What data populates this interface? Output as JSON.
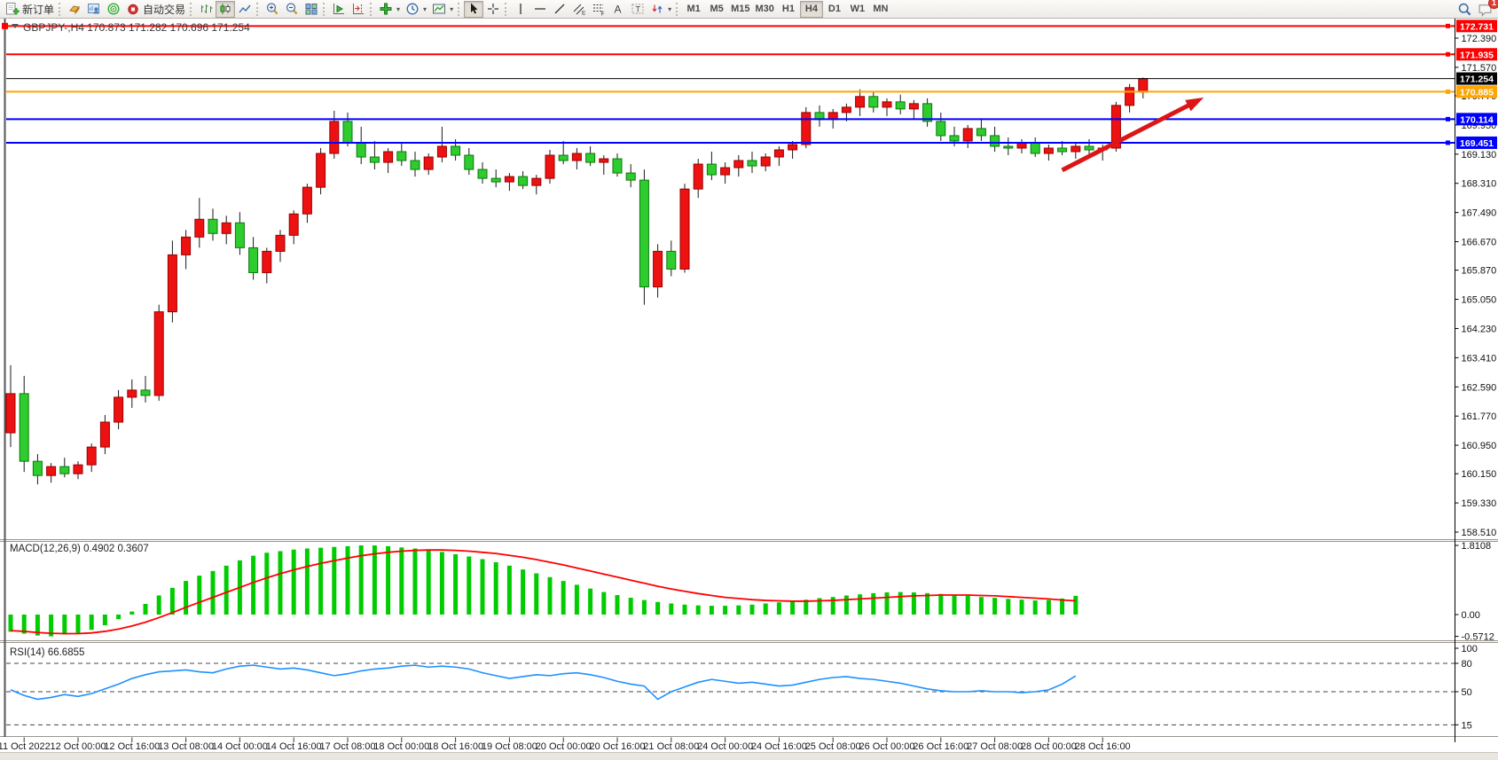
{
  "toolbar": {
    "new_order_label": "新订单",
    "autotrade_label": "自动交易",
    "timeframes": [
      "M1",
      "M5",
      "M15",
      "M30",
      "H1",
      "H4",
      "D1",
      "W1",
      "MN"
    ],
    "active_timeframe": "H4",
    "notification_count": "1"
  },
  "chart": {
    "title": "GBPJPY-,H4  170.873 171.282 170.696 171.254",
    "symbol": "GBPJPY-",
    "period": "H4"
  },
  "indicators": {
    "macd_label": "MACD(12,26,9) 0.4902 0.3607",
    "rsi_label": "RSI(14) 66.6855"
  },
  "chart_data": {
    "type": "candlestick",
    "symbol": "GBPJPY-",
    "timeframe": "H4",
    "title": "GBPJPY-,H4  170.873 171.282 170.696 171.254",
    "last_ohlc": {
      "open": 170.873,
      "high": 171.282,
      "low": 170.696,
      "close": 171.254
    },
    "up_color": "#ee1111",
    "down_color": "#2ecc2e",
    "price_axis_ticks": [
      172.39,
      171.57,
      170.77,
      169.95,
      169.13,
      168.31,
      167.49,
      166.67,
      165.87,
      165.05,
      164.23,
      163.41,
      162.59,
      161.77,
      160.95,
      160.15,
      159.33,
      158.51
    ],
    "time_labels": [
      "11 Oct 2022",
      "12 Oct 00:00",
      "12 Oct 16:00",
      "13 Oct 08:00",
      "14 Oct 00:00",
      "14 Oct 16:00",
      "17 Oct 08:00",
      "18 Oct 00:00",
      "18 Oct 16:00",
      "19 Oct 08:00",
      "20 Oct 00:00",
      "20 Oct 16:00",
      "21 Oct 08:00",
      "24 Oct 00:00",
      "24 Oct 16:00",
      "25 Oct 08:00",
      "26 Oct 00:00",
      "26 Oct 16:00",
      "27 Oct 08:00",
      "28 Oct 00:00",
      "28 Oct 16:00"
    ],
    "hlines": [
      {
        "price": 172.731,
        "label": "172.731",
        "color": "#fe0000",
        "badge_bg": "#fe0000",
        "badge_fg": "#ffffff",
        "width": 2,
        "left_handle": true
      },
      {
        "price": 171.935,
        "label": "171.935",
        "color": "#fe0000",
        "badge_bg": "#fe0000",
        "badge_fg": "#ffffff",
        "width": 2,
        "left_handle": false
      },
      {
        "price": 171.254,
        "label": "171.254",
        "color": "#000000",
        "badge_bg": "#000000",
        "badge_fg": "#ffffff",
        "width": 1,
        "left_handle": false,
        "is_current_price": true
      },
      {
        "price": 170.885,
        "label": "170.885",
        "color": "#ffa500",
        "badge_bg": "#ffa500",
        "badge_fg": "#ffffff",
        "width": 2,
        "left_handle": false
      },
      {
        "price": 170.114,
        "label": "170.114",
        "color": "#0000fe",
        "badge_bg": "#0000fe",
        "badge_fg": "#ffffff",
        "width": 2,
        "left_handle": false
      },
      {
        "price": 169.451,
        "label": "169.451",
        "color": "#0000fe",
        "badge_bg": "#0000fe",
        "badge_fg": "#ffffff",
        "width": 2,
        "left_handle": false
      }
    ],
    "candles": [
      [
        161.3,
        163.2,
        160.9,
        162.4
      ],
      [
        162.4,
        162.9,
        160.2,
        160.5
      ],
      [
        160.5,
        160.7,
        159.85,
        160.1
      ],
      [
        160.1,
        160.45,
        159.9,
        160.35
      ],
      [
        160.35,
        160.6,
        160.05,
        160.15
      ],
      [
        160.15,
        160.5,
        160.0,
        160.4
      ],
      [
        160.4,
        161.0,
        160.2,
        160.9
      ],
      [
        160.9,
        161.8,
        160.7,
        161.6
      ],
      [
        161.6,
        162.5,
        161.4,
        162.3
      ],
      [
        162.3,
        162.8,
        162.0,
        162.5
      ],
      [
        162.5,
        162.9,
        162.15,
        162.35
      ],
      [
        162.35,
        164.9,
        162.2,
        164.7
      ],
      [
        164.7,
        166.7,
        164.4,
        166.3
      ],
      [
        166.3,
        167.0,
        165.9,
        166.8
      ],
      [
        166.8,
        167.9,
        166.5,
        167.3
      ],
      [
        167.3,
        167.6,
        166.7,
        166.9
      ],
      [
        166.9,
        167.4,
        166.6,
        167.2
      ],
      [
        167.2,
        167.5,
        166.3,
        166.5
      ],
      [
        166.5,
        166.8,
        165.6,
        165.8
      ],
      [
        165.8,
        166.5,
        165.5,
        166.4
      ],
      [
        166.4,
        167.0,
        166.1,
        166.85
      ],
      [
        166.85,
        167.55,
        166.6,
        167.45
      ],
      [
        167.45,
        168.3,
        167.2,
        168.2
      ],
      [
        168.2,
        169.3,
        168.0,
        169.15
      ],
      [
        169.15,
        170.35,
        169.0,
        170.05
      ],
      [
        170.05,
        170.3,
        169.35,
        169.45
      ],
      [
        169.45,
        169.9,
        168.85,
        169.05
      ],
      [
        169.05,
        169.5,
        168.7,
        168.9
      ],
      [
        168.9,
        169.3,
        168.6,
        169.2
      ],
      [
        169.2,
        169.45,
        168.8,
        168.95
      ],
      [
        168.95,
        169.2,
        168.5,
        168.7
      ],
      [
        168.7,
        169.15,
        168.55,
        169.05
      ],
      [
        169.05,
        169.9,
        168.9,
        169.35
      ],
      [
        169.35,
        169.55,
        168.95,
        169.1
      ],
      [
        169.1,
        169.3,
        168.55,
        168.7
      ],
      [
        168.7,
        168.9,
        168.3,
        168.45
      ],
      [
        168.45,
        168.7,
        168.2,
        168.35
      ],
      [
        168.35,
        168.6,
        168.1,
        168.5
      ],
      [
        168.5,
        168.65,
        168.15,
        168.25
      ],
      [
        168.25,
        168.55,
        168.0,
        168.45
      ],
      [
        168.45,
        169.25,
        168.3,
        169.1
      ],
      [
        169.1,
        169.5,
        168.85,
        168.95
      ],
      [
        168.95,
        169.3,
        168.7,
        169.15
      ],
      [
        169.15,
        169.35,
        168.8,
        168.9
      ],
      [
        168.9,
        169.1,
        168.55,
        169.0
      ],
      [
        169.0,
        169.15,
        168.5,
        168.6
      ],
      [
        168.6,
        168.85,
        168.2,
        168.4
      ],
      [
        168.4,
        168.7,
        164.9,
        165.4
      ],
      [
        165.4,
        166.6,
        165.1,
        166.4
      ],
      [
        166.4,
        166.7,
        165.7,
        165.9
      ],
      [
        165.9,
        168.3,
        165.8,
        168.15
      ],
      [
        168.15,
        169.0,
        167.9,
        168.85
      ],
      [
        168.85,
        169.2,
        168.4,
        168.55
      ],
      [
        168.55,
        168.9,
        168.3,
        168.75
      ],
      [
        168.75,
        169.1,
        168.5,
        168.95
      ],
      [
        168.95,
        169.2,
        168.6,
        168.8
      ],
      [
        168.8,
        169.15,
        168.65,
        169.05
      ],
      [
        169.05,
        169.35,
        168.8,
        169.25
      ],
      [
        169.25,
        169.5,
        169.0,
        169.4
      ],
      [
        169.4,
        170.45,
        169.3,
        170.3
      ],
      [
        170.3,
        170.5,
        169.9,
        170.1
      ],
      [
        170.1,
        170.4,
        169.85,
        170.3
      ],
      [
        170.3,
        170.55,
        170.05,
        170.45
      ],
      [
        170.45,
        170.95,
        170.2,
        170.75
      ],
      [
        170.75,
        170.9,
        170.3,
        170.45
      ],
      [
        170.45,
        170.7,
        170.2,
        170.6
      ],
      [
        170.6,
        170.8,
        170.25,
        170.4
      ],
      [
        170.4,
        170.65,
        170.1,
        170.55
      ],
      [
        170.55,
        170.7,
        169.9,
        170.05
      ],
      [
        170.05,
        170.3,
        169.5,
        169.65
      ],
      [
        169.65,
        169.9,
        169.35,
        169.5
      ],
      [
        169.5,
        169.95,
        169.3,
        169.85
      ],
      [
        169.85,
        170.1,
        169.5,
        169.65
      ],
      [
        169.65,
        169.9,
        169.2,
        169.35
      ],
      [
        169.35,
        169.6,
        169.1,
        169.3
      ],
      [
        169.3,
        169.55,
        169.15,
        169.45
      ],
      [
        169.45,
        169.6,
        169.05,
        169.15
      ],
      [
        169.15,
        169.4,
        168.95,
        169.3
      ],
      [
        169.3,
        169.5,
        169.1,
        169.2
      ],
      [
        169.2,
        169.45,
        169.0,
        169.35
      ],
      [
        169.35,
        169.55,
        169.1,
        169.25
      ],
      [
        169.25,
        169.4,
        168.95,
        169.3
      ],
      [
        169.3,
        170.6,
        169.2,
        170.5
      ],
      [
        170.5,
        171.1,
        170.3,
        171.0
      ],
      [
        170.873,
        171.282,
        170.696,
        171.254
      ]
    ],
    "macd": {
      "label": "MACD(12,26,9) 0.4902 0.3607",
      "params": "12,26,9",
      "main_value": 0.4902,
      "signal_value": 0.3607,
      "axis_ticks": [
        "1.8108",
        "0.00",
        "-0.5712"
      ],
      "axis_tick_values": [
        1.8108,
        0,
        -0.5712
      ],
      "histogram_color": "#00cc00",
      "signal_color": "#fe0000",
      "histogram": [
        -0.45,
        -0.5,
        -0.55,
        -0.5712,
        -0.52,
        -0.48,
        -0.4,
        -0.28,
        -0.12,
        0.08,
        0.28,
        0.5,
        0.7,
        0.88,
        1.02,
        1.14,
        1.28,
        1.42,
        1.54,
        1.62,
        1.66,
        1.7,
        1.73,
        1.75,
        1.77,
        1.79,
        1.81,
        1.8108,
        1.79,
        1.76,
        1.73,
        1.69,
        1.64,
        1.58,
        1.52,
        1.45,
        1.37,
        1.28,
        1.18,
        1.08,
        0.98,
        0.88,
        0.78,
        0.68,
        0.59,
        0.51,
        0.44,
        0.38,
        0.33,
        0.29,
        0.26,
        0.24,
        0.23,
        0.23,
        0.24,
        0.26,
        0.29,
        0.32,
        0.35,
        0.39,
        0.43,
        0.46,
        0.5,
        0.53,
        0.56,
        0.58,
        0.59,
        0.58,
        0.56,
        0.54,
        0.51,
        0.49,
        0.46,
        0.44,
        0.41,
        0.39,
        0.37,
        0.38,
        0.42,
        0.49
      ],
      "signal": [
        -0.42,
        -0.44,
        -0.47,
        -0.49,
        -0.5,
        -0.5,
        -0.48,
        -0.44,
        -0.38,
        -0.3,
        -0.2,
        -0.08,
        0.05,
        0.19,
        0.32,
        0.45,
        0.58,
        0.71,
        0.84,
        0.96,
        1.07,
        1.17,
        1.26,
        1.34,
        1.41,
        1.48,
        1.54,
        1.59,
        1.63,
        1.66,
        1.68,
        1.69,
        1.69,
        1.68,
        1.66,
        1.63,
        1.6,
        1.55,
        1.5,
        1.44,
        1.37,
        1.3,
        1.22,
        1.14,
        1.06,
        0.98,
        0.9,
        0.82,
        0.74,
        0.67,
        0.61,
        0.55,
        0.5,
        0.45,
        0.42,
        0.39,
        0.37,
        0.36,
        0.35,
        0.35,
        0.36,
        0.37,
        0.39,
        0.41,
        0.43,
        0.45,
        0.47,
        0.49,
        0.5,
        0.51,
        0.51,
        0.51,
        0.5,
        0.49,
        0.47,
        0.45,
        0.43,
        0.41,
        0.38,
        0.36
      ]
    },
    "rsi": {
      "label": "RSI(14) 66.6855",
      "period": 14,
      "value": 66.6855,
      "axis_ticks": [
        "100",
        "80",
        "50",
        "15"
      ],
      "axis_tick_values": [
        100,
        80,
        50,
        15
      ],
      "level_lines": [
        80,
        50,
        15
      ],
      "line_color": "#1E90FF",
      "values": [
        52,
        46,
        42,
        44,
        47,
        45,
        48,
        53,
        58,
        64,
        68,
        71,
        72,
        73,
        71,
        70,
        74,
        77,
        78,
        76,
        74,
        75,
        73,
        70,
        67,
        69,
        72,
        74,
        75,
        77,
        78,
        76,
        77,
        76,
        74,
        70,
        67,
        64,
        66,
        68,
        67,
        69,
        70,
        68,
        65,
        61,
        58,
        56,
        42,
        50,
        55,
        60,
        63,
        61,
        59,
        60,
        58,
        56,
        57,
        60,
        63,
        65,
        66,
        64,
        63,
        61,
        59,
        56,
        53,
        51,
        50,
        50,
        51,
        50,
        50,
        49,
        50,
        52,
        58,
        66.7
      ]
    },
    "trend_arrow": {
      "from_index": 78,
      "from_price": 168.68,
      "to_index": 88.5,
      "to_price": 170.72,
      "color": "#dd1515"
    }
  }
}
